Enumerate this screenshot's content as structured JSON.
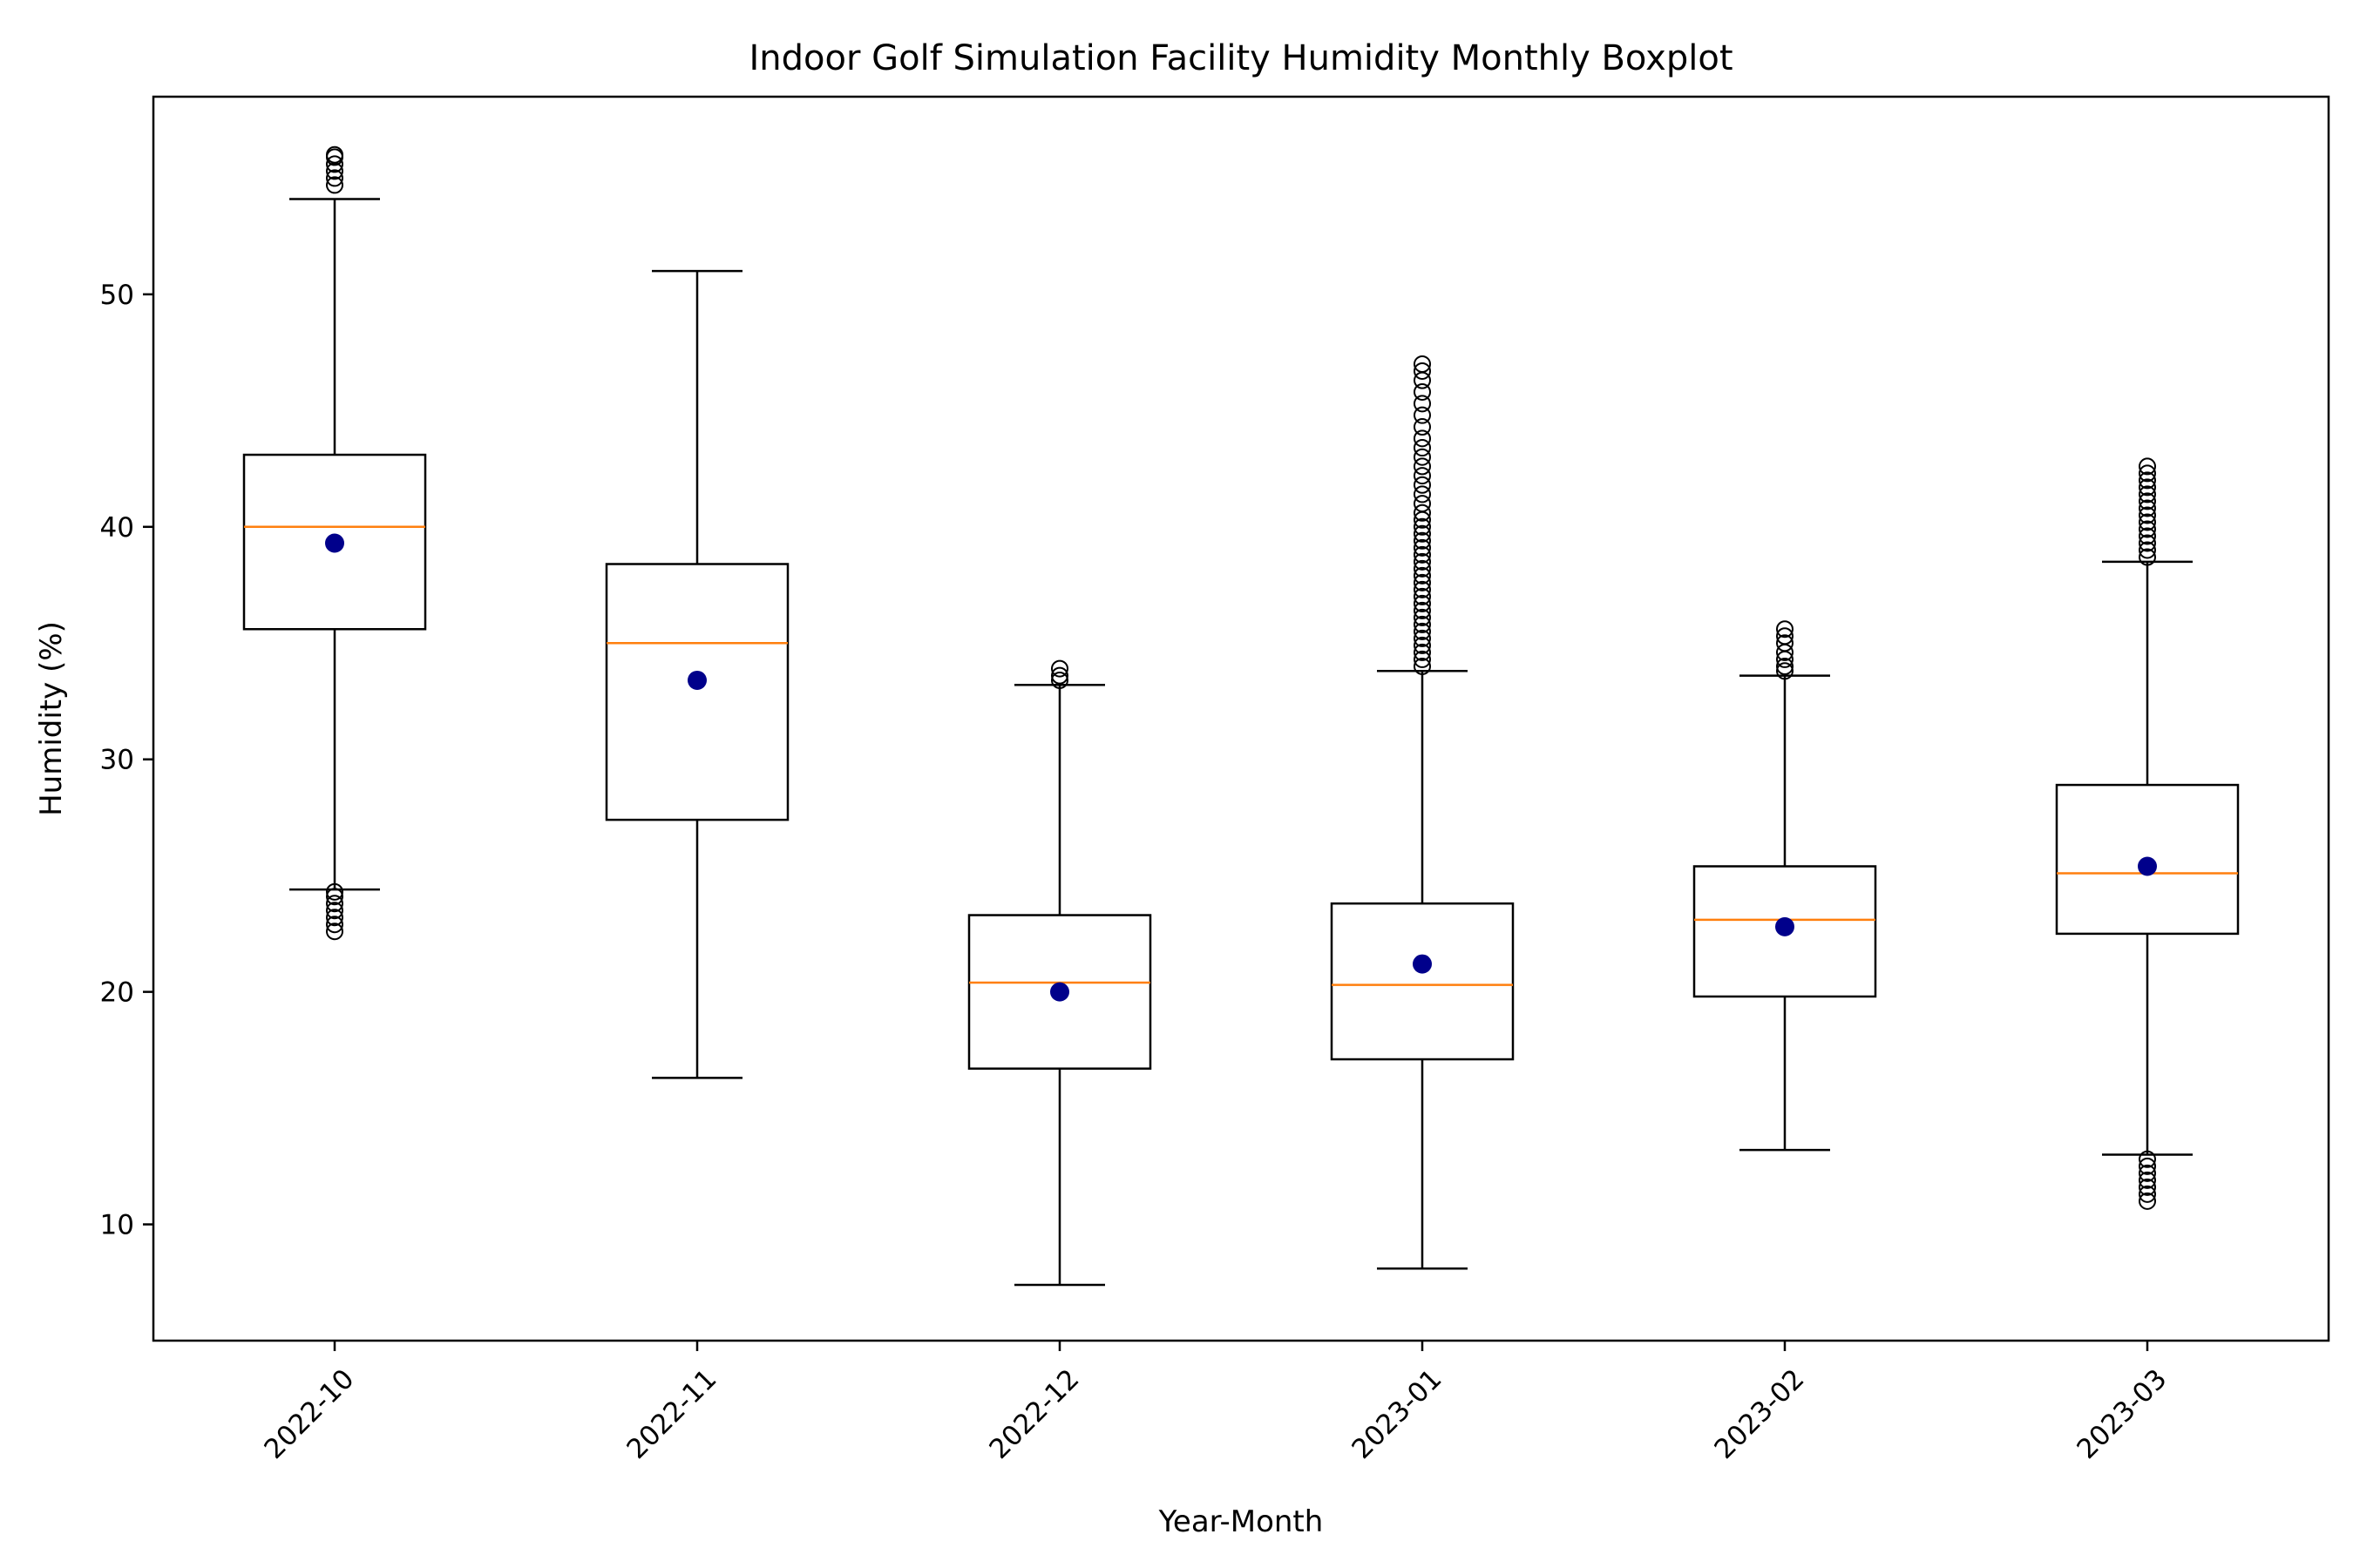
{
  "chart_data": {
    "type": "boxplot",
    "title": "Indoor Golf Simulation Facility Humidity Monthly Boxplot",
    "xlabel": "Year-Month",
    "ylabel": "Humidity (%)",
    "ylim": [
      5,
      58.5
    ],
    "yticks": [
      10,
      20,
      30,
      40,
      50
    ],
    "grid": false,
    "colors": {
      "box": "#000000",
      "median": "#ff7f0e",
      "mean": "#00008b"
    },
    "categories": [
      "2022-10",
      "2022-11",
      "2022-12",
      "2023-01",
      "2023-02",
      "2023-03"
    ],
    "boxes": [
      {
        "label": "2022-10",
        "whisker_low": 24.4,
        "q1": 35.6,
        "median": 40.0,
        "q3": 43.1,
        "whisker_high": 54.1,
        "mean": 39.3,
        "outliers": [
          22.6,
          22.9,
          23.2,
          23.5,
          23.8,
          24.1,
          24.3,
          54.7,
          55.0,
          55.3,
          55.6,
          55.9,
          56.0
        ]
      },
      {
        "label": "2022-11",
        "whisker_low": 16.3,
        "q1": 27.4,
        "median": 35.0,
        "q3": 38.4,
        "whisker_high": 51.0,
        "mean": 33.4,
        "outliers": []
      },
      {
        "label": "2022-12",
        "whisker_low": 7.4,
        "q1": 16.7,
        "median": 20.4,
        "q3": 23.3,
        "whisker_high": 33.2,
        "mean": 20.0,
        "outliers": [
          33.4,
          33.6,
          33.9
        ]
      },
      {
        "label": "2023-01",
        "whisker_low": 8.1,
        "q1": 17.1,
        "median": 20.3,
        "q3": 23.8,
        "whisker_high": 33.8,
        "mean": 21.2,
        "outliers": [
          34.0,
          34.3,
          34.6,
          34.9,
          35.2,
          35.5,
          35.8,
          36.1,
          36.4,
          36.7,
          37.0,
          37.3,
          37.6,
          37.9,
          38.2,
          38.5,
          38.8,
          39.1,
          39.4,
          39.7,
          40.0,
          40.3,
          40.6,
          41.0,
          41.4,
          41.8,
          42.2,
          42.6,
          43.0,
          43.4,
          43.8,
          44.3,
          44.8,
          45.3,
          45.8,
          46.3,
          46.7,
          47.0
        ]
      },
      {
        "label": "2023-02",
        "whisker_low": 13.2,
        "q1": 19.8,
        "median": 23.1,
        "q3": 25.4,
        "whisker_high": 33.6,
        "mean": 22.8,
        "outliers": [
          33.8,
          34.0,
          34.3,
          34.6,
          35.0,
          35.3,
          35.6
        ]
      },
      {
        "label": "2023-03",
        "whisker_low": 13.0,
        "q1": 22.5,
        "median": 25.1,
        "q3": 28.9,
        "whisker_high": 38.5,
        "mean": 25.4,
        "outliers": [
          11.0,
          11.3,
          11.6,
          11.9,
          12.2,
          12.5,
          12.8,
          38.7,
          39.0,
          39.3,
          39.6,
          39.9,
          40.2,
          40.5,
          40.8,
          41.1,
          41.4,
          41.7,
          42.0,
          42.3,
          42.6
        ]
      }
    ]
  }
}
